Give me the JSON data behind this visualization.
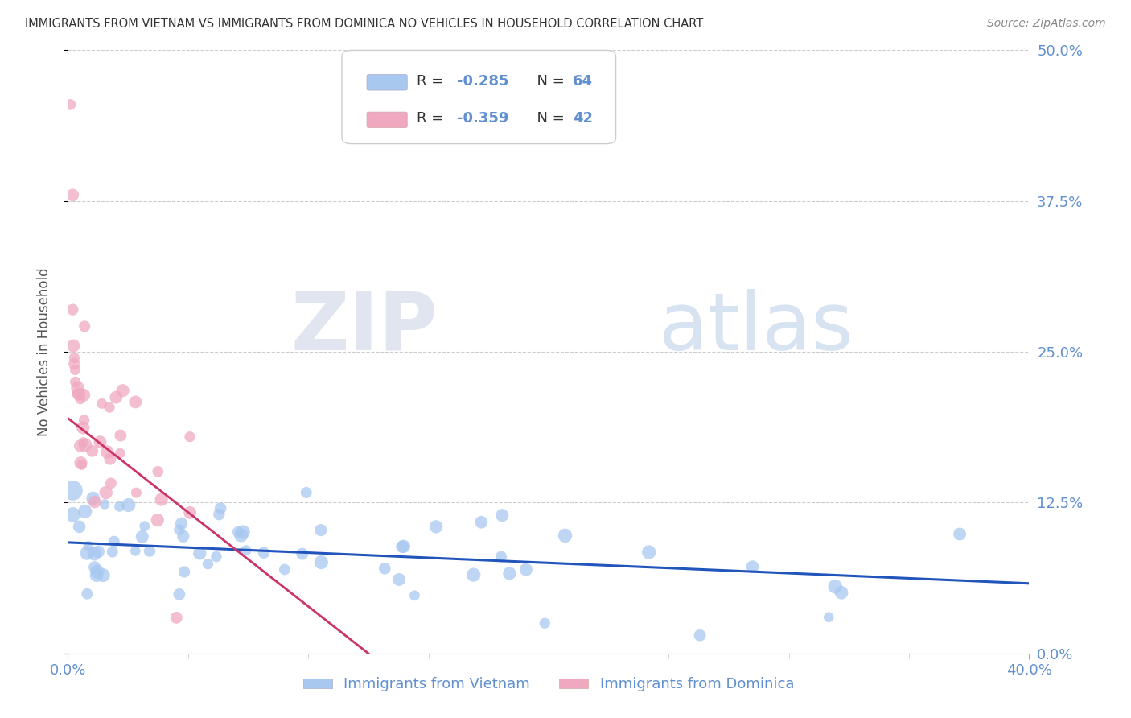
{
  "title": "IMMIGRANTS FROM VIETNAM VS IMMIGRANTS FROM DOMINICA NO VEHICLES IN HOUSEHOLD CORRELATION CHART",
  "source": "Source: ZipAtlas.com",
  "ylabel": "No Vehicles in Household",
  "ytick_labels": [
    "0.0%",
    "12.5%",
    "25.0%",
    "37.5%",
    "50.0%"
  ],
  "ytick_values": [
    0.0,
    0.125,
    0.25,
    0.375,
    0.5
  ],
  "xlim": [
    0.0,
    0.4
  ],
  "ylim": [
    0.0,
    0.5
  ],
  "watermark_zip": "ZIP",
  "watermark_atlas": "atlas",
  "legend_vietnam": "Immigrants from Vietnam",
  "legend_dominica": "Immigrants from Dominica",
  "legend_R_vietnam": "R = -0.285",
  "legend_N_vietnam": "N = 64",
  "legend_R_dominica": "R = -0.359",
  "legend_N_dominica": "N = 42",
  "color_vietnam": "#a8c8f0",
  "color_dominica": "#f0a8c0",
  "color_line_vietnam": "#2255bb",
  "color_line_dominica": "#cc3366",
  "color_ticks": "#6090d0",
  "title_color": "#333333",
  "source_color": "#888888",
  "viet_line_x0": 0.0,
  "viet_line_x1": 0.4,
  "viet_line_y0": 0.092,
  "viet_line_y1": 0.058,
  "dom_line_x0": 0.0,
  "dom_line_x1": 0.125,
  "dom_line_y0": 0.195,
  "dom_line_y1": 0.0
}
